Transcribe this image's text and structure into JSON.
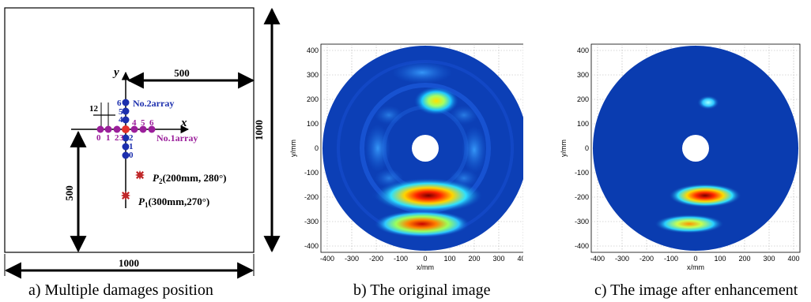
{
  "panel_a": {
    "dim_top": "500",
    "dim_right": "1000",
    "dim_bottom": "1000",
    "dim_left": "500",
    "dim_spacing": "12",
    "axis_x": "x",
    "axis_y": "y",
    "array1_label": "No.1array",
    "array2_label": "No.2array",
    "array1_indices": [
      "0",
      "1",
      "2",
      "3",
      "4",
      "5",
      "6"
    ],
    "array2_indices": [
      "6",
      "5",
      "4",
      "2",
      "1",
      "0"
    ],
    "p2_letter": "P",
    "p2_sub": "2",
    "p2_coords": "(200mm, 280°)",
    "p1_letter": "P",
    "p1_sub": "1",
    "p1_coords": "(300mm,270°)",
    "colors": {
      "array1": "#9b1f9b",
      "array2": "#1c2fae",
      "origin": "#e5312b",
      "damage": "#c0282a"
    }
  },
  "panel_b": {
    "xlabel": "x/mm",
    "ylabel": "y/mm",
    "xticks": [
      "-400",
      "-300",
      "-200",
      "-100",
      "0",
      "100",
      "200",
      "300",
      "400"
    ],
    "yticks": [
      "400",
      "300",
      "200",
      "100",
      "0",
      "-100",
      "-200",
      "-300",
      "-400"
    ]
  },
  "panel_c": {
    "xlabel": "x/mm",
    "ylabel": "y/mm",
    "xticks": [
      "-400",
      "-300",
      "-200",
      "-100",
      "0",
      "100",
      "200",
      "300",
      "400"
    ],
    "yticks": [
      "400",
      "300",
      "200",
      "100",
      "0",
      "-100",
      "-200",
      "-300",
      "-400"
    ]
  },
  "captions": {
    "a": "a) Multiple damages position",
    "b": "b) The original image",
    "c": "c) The image after enhancement"
  },
  "chart_data": [
    {
      "type": "heatmap",
      "title": "",
      "xlabel": "x/mm",
      "ylabel": "y/mm",
      "xlim": [
        -420,
        420
      ],
      "ylim": [
        -420,
        420
      ],
      "grid": true,
      "hotspots_mm": [
        {
          "x": 60,
          "y": -190,
          "intensity": 1.0
        },
        {
          "x": 30,
          "y": -300,
          "intensity": 0.9
        },
        {
          "x": 55,
          "y": 195,
          "intensity": 0.75
        }
      ]
    },
    {
      "type": "heatmap",
      "title": "",
      "xlabel": "x/mm",
      "ylabel": "y/mm",
      "xlim": [
        -420,
        420
      ],
      "ylim": [
        -420,
        420
      ],
      "grid": true,
      "hotspots_mm": [
        {
          "x": 60,
          "y": -190,
          "intensity": 1.0
        },
        {
          "x": 20,
          "y": -300,
          "intensity": 0.75
        },
        {
          "x": 50,
          "y": 195,
          "intensity": 0.55
        }
      ]
    }
  ]
}
